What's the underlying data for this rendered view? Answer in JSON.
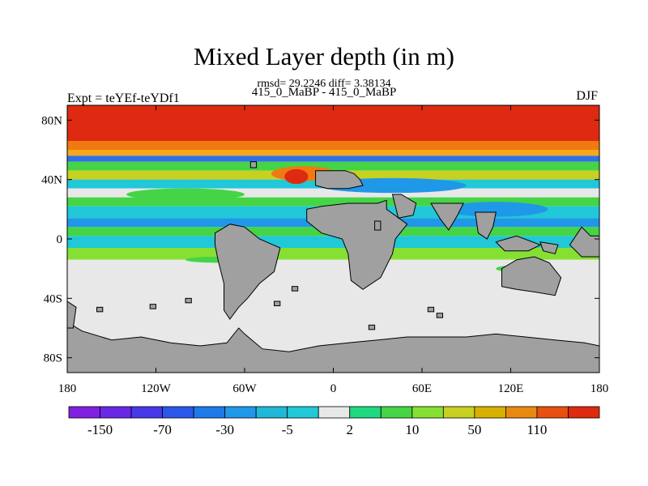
{
  "header": {
    "title": "Mixed Layer depth (in m)",
    "stats": "rmsd= 29.2246 diff= 3.38134",
    "experiment_line": "415_0_MaBP - 415_0_MaBP",
    "expt_label": "Expt = teYEf-teYDf1",
    "season": "DJF"
  },
  "map": {
    "y_ticks": [
      {
        "label": "80N",
        "lat": 80
      },
      {
        "label": "40N",
        "lat": 40
      },
      {
        "label": "0",
        "lat": 0
      },
      {
        "label": "40S",
        "lat": -40
      },
      {
        "label": "80S",
        "lat": -80
      }
    ],
    "x_ticks": [
      {
        "label": "180",
        "lon": -180
      },
      {
        "label": "120W",
        "lon": -120
      },
      {
        "label": "60W",
        "lon": -60
      },
      {
        "label": "0",
        "lon": 0
      },
      {
        "label": "60E",
        "lon": 60
      },
      {
        "label": "120E",
        "lon": 120
      },
      {
        "label": "180",
        "lon": 180
      }
    ],
    "lon_range": [
      -180,
      180
    ],
    "lat_range": [
      -90,
      90
    ],
    "land_color": "#a0a0a0",
    "bands": [
      {
        "lat_top": 90,
        "lat_bottom": 66,
        "color": "#dd2a10"
      },
      {
        "lat_top": 66,
        "lat_bottom": 60,
        "color": "#f07a10"
      },
      {
        "lat_top": 60,
        "lat_bottom": 56,
        "color": "#f7a81a"
      },
      {
        "lat_top": 56,
        "lat_bottom": 52,
        "color": "#3070e6"
      },
      {
        "lat_top": 52,
        "lat_bottom": 46,
        "color": "#45d445"
      },
      {
        "lat_top": 46,
        "lat_bottom": 40,
        "color": "#c8d020"
      },
      {
        "lat_top": 40,
        "lat_bottom": 34,
        "color": "#20c8d8"
      },
      {
        "lat_top": 34,
        "lat_bottom": 28,
        "color": "#e8e8e8"
      },
      {
        "lat_top": 28,
        "lat_bottom": 22,
        "color": "#45d445"
      },
      {
        "lat_top": 22,
        "lat_bottom": 14,
        "color": "#20c8d8"
      },
      {
        "lat_top": 14,
        "lat_bottom": 8,
        "color": "#1f98e8"
      },
      {
        "lat_top": 8,
        "lat_bottom": 2,
        "color": "#45d445"
      },
      {
        "lat_top": 2,
        "lat_bottom": -6,
        "color": "#20c8d8"
      },
      {
        "lat_top": -6,
        "lat_bottom": -14,
        "color": "#86e034"
      },
      {
        "lat_top": -14,
        "lat_bottom": -90,
        "color": "#e8e8e8"
      }
    ],
    "patches": [
      {
        "lon": -20,
        "lat": 44,
        "rx": 22,
        "ry": 5,
        "color": "#f07a10"
      },
      {
        "lon": -25,
        "lat": 42,
        "rx": 8,
        "ry": 5,
        "color": "#dd2a10"
      },
      {
        "lon": 40,
        "lat": 36,
        "rx": 50,
        "ry": 5,
        "color": "#1f98e8"
      },
      {
        "lon": -100,
        "lat": 30,
        "rx": 40,
        "ry": 4,
        "color": "#45d445"
      },
      {
        "lon": 110,
        "lat": 20,
        "rx": 35,
        "ry": 5,
        "color": "#1f98e8"
      },
      {
        "lon": -80,
        "lat": -14,
        "rx": 20,
        "ry": 2,
        "color": "#45d445"
      },
      {
        "lon": 120,
        "lat": -20,
        "rx": 10,
        "ry": 2,
        "color": "#45d445"
      }
    ],
    "land": [
      {
        "name": "north-africa-europe",
        "points": [
          [
            -12,
            46
          ],
          [
            8,
            46
          ],
          [
            14,
            44
          ],
          [
            18,
            40
          ],
          [
            20,
            36
          ],
          [
            10,
            34
          ],
          [
            -4,
            34
          ],
          [
            -12,
            36
          ]
        ]
      },
      {
        "name": "africa",
        "points": [
          [
            -18,
            20
          ],
          [
            -8,
            22
          ],
          [
            10,
            24
          ],
          [
            30,
            24
          ],
          [
            36,
            26
          ],
          [
            36,
            20
          ],
          [
            50,
            10
          ],
          [
            42,
            0
          ],
          [
            40,
            -10
          ],
          [
            32,
            -26
          ],
          [
            20,
            -34
          ],
          [
            12,
            -28
          ],
          [
            10,
            -10
          ],
          [
            6,
            0
          ],
          [
            -8,
            4
          ],
          [
            -18,
            12
          ]
        ]
      },
      {
        "name": "south-america",
        "points": [
          [
            -80,
            4
          ],
          [
            -70,
            10
          ],
          [
            -60,
            8
          ],
          [
            -50,
            0
          ],
          [
            -36,
            -6
          ],
          [
            -40,
            -22
          ],
          [
            -50,
            -30
          ],
          [
            -58,
            -40
          ],
          [
            -64,
            -46
          ],
          [
            -70,
            -54
          ],
          [
            -74,
            -48
          ],
          [
            -74,
            -30
          ],
          [
            -78,
            -14
          ],
          [
            -80,
            -4
          ]
        ]
      },
      {
        "name": "arabia",
        "points": [
          [
            40,
            30
          ],
          [
            46,
            30
          ],
          [
            56,
            24
          ],
          [
            54,
            16
          ],
          [
            44,
            14
          ]
        ]
      },
      {
        "name": "india",
        "points": [
          [
            66,
            24
          ],
          [
            88,
            24
          ],
          [
            84,
            16
          ],
          [
            78,
            6
          ],
          [
            72,
            14
          ]
        ]
      },
      {
        "name": "southeast-asia",
        "points": [
          [
            96,
            18
          ],
          [
            110,
            18
          ],
          [
            108,
            8
          ],
          [
            104,
            0
          ],
          [
            98,
            4
          ]
        ]
      },
      {
        "name": "maritime-continent",
        "points": [
          [
            110,
            -2
          ],
          [
            124,
            2
          ],
          [
            140,
            -4
          ],
          [
            132,
            -8
          ],
          [
            116,
            -8
          ]
        ]
      },
      {
        "name": "australia",
        "points": [
          [
            114,
            -20
          ],
          [
            124,
            -14
          ],
          [
            136,
            -12
          ],
          [
            146,
            -16
          ],
          [
            154,
            -26
          ],
          [
            150,
            -38
          ],
          [
            138,
            -36
          ],
          [
            124,
            -34
          ],
          [
            114,
            -32
          ]
        ]
      },
      {
        "name": "papua",
        "points": [
          [
            140,
            -2
          ],
          [
            152,
            -4
          ],
          [
            150,
            -10
          ],
          [
            142,
            -8
          ]
        ]
      },
      {
        "name": "east-asia",
        "points": [
          [
            160,
            -4
          ],
          [
            168,
            8
          ],
          [
            174,
            2
          ],
          [
            180,
            2
          ],
          [
            180,
            -12
          ],
          [
            168,
            -12
          ]
        ]
      },
      {
        "name": "antarctica",
        "points": [
          [
            -180,
            -56
          ],
          [
            -170,
            -62
          ],
          [
            -150,
            -68
          ],
          [
            -130,
            -66
          ],
          [
            -110,
            -70
          ],
          [
            -90,
            -72
          ],
          [
            -72,
            -70
          ],
          [
            -64,
            -60
          ],
          [
            -60,
            -64
          ],
          [
            -48,
            -74
          ],
          [
            -30,
            -76
          ],
          [
            -10,
            -72
          ],
          [
            10,
            -70
          ],
          [
            30,
            -68
          ],
          [
            50,
            -66
          ],
          [
            70,
            -66
          ],
          [
            90,
            -66
          ],
          [
            110,
            -64
          ],
          [
            130,
            -66
          ],
          [
            150,
            -68
          ],
          [
            170,
            -70
          ],
          [
            180,
            -72
          ],
          [
            180,
            -90
          ],
          [
            -180,
            -90
          ]
        ]
      },
      {
        "name": "greenland-west",
        "points": [
          [
            -180,
            -42
          ],
          [
            -174,
            -46
          ],
          [
            -176,
            -60
          ],
          [
            -180,
            -60
          ]
        ]
      }
    ],
    "small_islands": [
      {
        "lon": -56,
        "lat": 52,
        "w": 4,
        "h": 4
      },
      {
        "lon": 28,
        "lat": 12,
        "w": 4,
        "h": 6
      },
      {
        "lon": -100,
        "lat": -40,
        "w": 4,
        "h": 3
      },
      {
        "lon": -124,
        "lat": -44,
        "w": 4,
        "h": 3
      },
      {
        "lon": -160,
        "lat": -46,
        "w": 4,
        "h": 3
      },
      {
        "lon": -40,
        "lat": -42,
        "w": 4,
        "h": 3
      },
      {
        "lon": 64,
        "lat": -46,
        "w": 4,
        "h": 3
      },
      {
        "lon": 70,
        "lat": -50,
        "w": 4,
        "h": 3
      },
      {
        "lon": -28,
        "lat": -32,
        "w": 4,
        "h": 3
      },
      {
        "lon": 24,
        "lat": -58,
        "w": 4,
        "h": 3
      }
    ]
  },
  "colorbar": {
    "labels": [
      {
        "text": "-150",
        "index": 1
      },
      {
        "text": "-70",
        "index": 3
      },
      {
        "text": "-30",
        "index": 5
      },
      {
        "text": "-5",
        "index": 7
      },
      {
        "text": "2",
        "index": 9
      },
      {
        "text": "10",
        "index": 11
      },
      {
        "text": "50",
        "index": 13
      },
      {
        "text": "110",
        "index": 15
      }
    ],
    "colors": [
      "#8020e0",
      "#6828e6",
      "#4838e8",
      "#2a58ea",
      "#1f7ae8",
      "#1f98e8",
      "#20b8d8",
      "#20c8d8",
      "#e8e8e8",
      "#20d880",
      "#45d445",
      "#86e034",
      "#c8d020",
      "#d8b000",
      "#e88a10",
      "#e85010",
      "#dd2a10"
    ]
  }
}
